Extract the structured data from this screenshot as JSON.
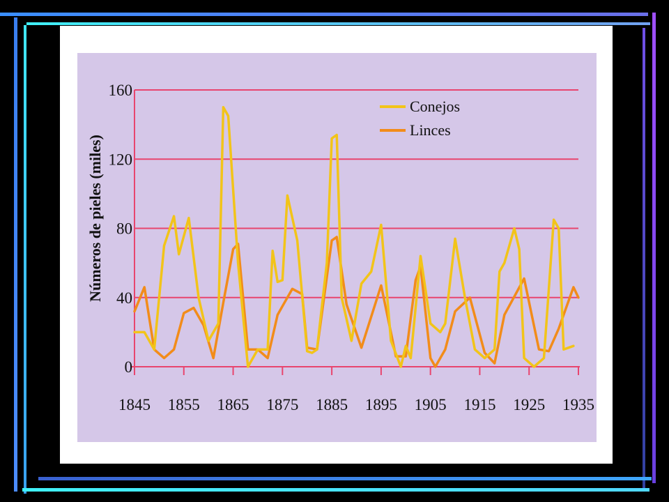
{
  "colors": {
    "background": "#000000",
    "frame_blue": "#4a7ff0",
    "frame_cyan": "#3ee6f0",
    "frame_purple": "#a040ff",
    "card": "#ffffff",
    "plot_bg": "#d5c7e8",
    "gridline": "#e8456e",
    "axis": "#e8456e",
    "conejos": "#f2c419",
    "linces": "#f28c1a"
  },
  "chart_data": {
    "type": "line",
    "ylabel": "Números de pieles (miles)",
    "xlim": [
      1845,
      1935
    ],
    "ylim": [
      0,
      160
    ],
    "yticks": [
      0,
      40,
      80,
      120,
      160
    ],
    "xticks": [
      1845,
      1855,
      1865,
      1875,
      1885,
      1895,
      1905,
      1915,
      1925,
      1935
    ],
    "grid": true,
    "legend_position": "top-right",
    "series": [
      {
        "name": "Conejos",
        "color_key": "conejos",
        "x": [
          1845,
          1847,
          1849,
          1851,
          1853,
          1854,
          1856,
          1858,
          1860,
          1862,
          1863,
          1864,
          1866,
          1868,
          1870,
          1872,
          1873,
          1874,
          1875,
          1876,
          1878,
          1880,
          1881,
          1882,
          1884,
          1885,
          1886,
          1887,
          1889,
          1891,
          1893,
          1895,
          1897,
          1899,
          1900,
          1901,
          1903,
          1905,
          1907,
          1908,
          1910,
          1912,
          1914,
          1916,
          1918,
          1919,
          1920,
          1922,
          1923,
          1924,
          1926,
          1928,
          1930,
          1931,
          1932,
          1934
        ],
        "y": [
          20,
          20,
          10,
          70,
          87,
          65,
          86,
          40,
          15,
          25,
          150,
          145,
          60,
          0,
          10,
          10,
          67,
          49,
          50,
          99,
          73,
          9,
          8,
          10,
          60,
          132,
          134,
          40,
          15,
          48,
          55,
          82,
          15,
          0,
          12,
          5,
          64,
          25,
          20,
          25,
          74,
          40,
          10,
          5,
          10,
          55,
          60,
          80,
          68,
          5,
          0,
          5,
          85,
          80,
          10,
          12
        ]
      },
      {
        "name": "Linces",
        "color_key": "linces",
        "x": [
          1845,
          1847,
          1849,
          1851,
          1853,
          1855,
          1857,
          1859,
          1861,
          1863,
          1865,
          1866,
          1868,
          1870,
          1872,
          1874,
          1875,
          1877,
          1879,
          1880,
          1882,
          1885,
          1886,
          1888,
          1891,
          1895,
          1898,
          1900,
          1902,
          1903,
          1905,
          1906,
          1908,
          1910,
          1913,
          1916,
          1918,
          1920,
          1924,
          1927,
          1929,
          1931,
          1934,
          1935
        ],
        "y": [
          32,
          46,
          10,
          5,
          10,
          31,
          34,
          24,
          5,
          37,
          68,
          71,
          10,
          10,
          5,
          30,
          35,
          45,
          42,
          11,
          10,
          73,
          75,
          36,
          11,
          47,
          6,
          6,
          50,
          58,
          5,
          0,
          10,
          32,
          40,
          8,
          2,
          30,
          51,
          10,
          9,
          22,
          46,
          40
        ]
      }
    ]
  }
}
